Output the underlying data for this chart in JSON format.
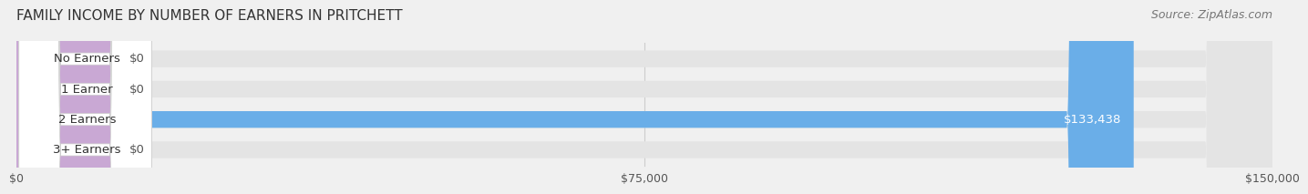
{
  "title": "FAMILY INCOME BY NUMBER OF EARNERS IN PRITCHETT",
  "source": "Source: ZipAtlas.com",
  "categories": [
    "No Earners",
    "1 Earner",
    "2 Earners",
    "3+ Earners"
  ],
  "values": [
    0,
    0,
    133438,
    0
  ],
  "bar_colors": [
    "#f5c888",
    "#f0a0a0",
    "#6aaee8",
    "#c9a8d4"
  ],
  "label_colors": [
    "#f5c888",
    "#f0a0a0",
    "#6aaee8",
    "#c9a8d4"
  ],
  "max_value": 150000,
  "xticks": [
    0,
    75000,
    150000
  ],
  "xtick_labels": [
    "$0",
    "$75,000",
    "$150,000"
  ],
  "bar_height": 0.55,
  "background_color": "#f0f0f0",
  "bar_bg_color": "#e8e8e8",
  "title_fontsize": 11,
  "source_fontsize": 9,
  "label_fontsize": 9.5,
  "value_label_color": "#ffffff",
  "zero_label_color": "#555555"
}
